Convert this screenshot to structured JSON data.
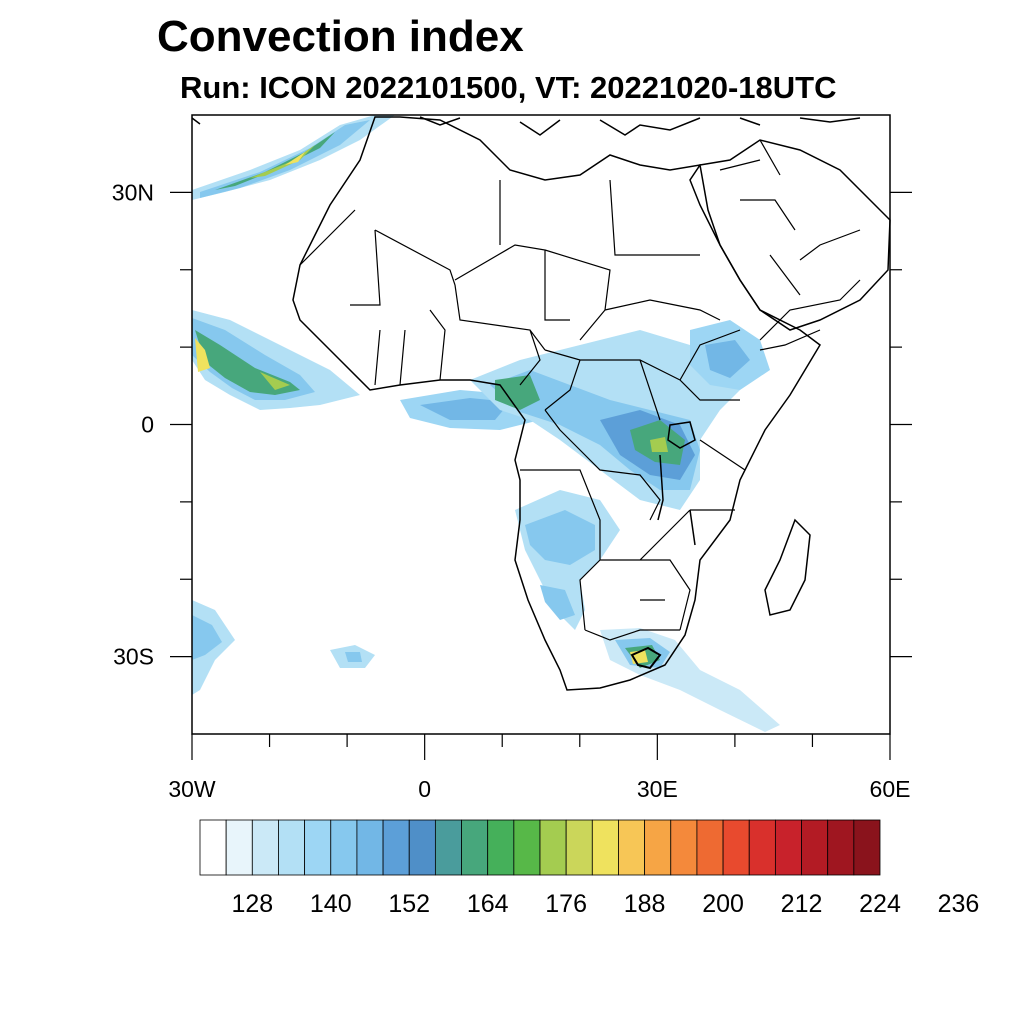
{
  "title": "Convection index",
  "subtitle": "Run: ICON 2022101500,  VT: 20221020-18UTC",
  "map": {
    "lon_range": [
      -30,
      60
    ],
    "lat_range": [
      -40,
      40
    ],
    "x_ticks": [
      {
        "lon": -30,
        "label": "30W"
      },
      {
        "lon": 0,
        "label": "0"
      },
      {
        "lon": 30,
        "label": "30E"
      },
      {
        "lon": 60,
        "label": "60E"
      }
    ],
    "y_ticks": [
      {
        "lat": 30,
        "label": "30N"
      },
      {
        "lat": 0,
        "label": "0"
      },
      {
        "lat": -30,
        "label": "30S"
      }
    ],
    "minor_lon_step": 10,
    "minor_lat_step": 10
  },
  "colorbar": {
    "colors": [
      "#ffffff",
      "#e8f5fb",
      "#cbe9f7",
      "#b3e0f5",
      "#9dd6f4",
      "#86c8ee",
      "#72b7e6",
      "#5c9fd8",
      "#4f8fc8",
      "#4a9c9c",
      "#47a77c",
      "#45b05a",
      "#57b848",
      "#a4cc50",
      "#cbd65a",
      "#efe25e",
      "#f7c656",
      "#f6a545",
      "#f4893b",
      "#ee6a32",
      "#e84a2e",
      "#d9302c",
      "#c8222b",
      "#b31b24",
      "#9f1620",
      "#8a131c"
    ],
    "tick_values": [
      128,
      140,
      152,
      164,
      176,
      188,
      200,
      212,
      224,
      236
    ],
    "first_tick_boundary": 2,
    "boundary_step": 3
  }
}
